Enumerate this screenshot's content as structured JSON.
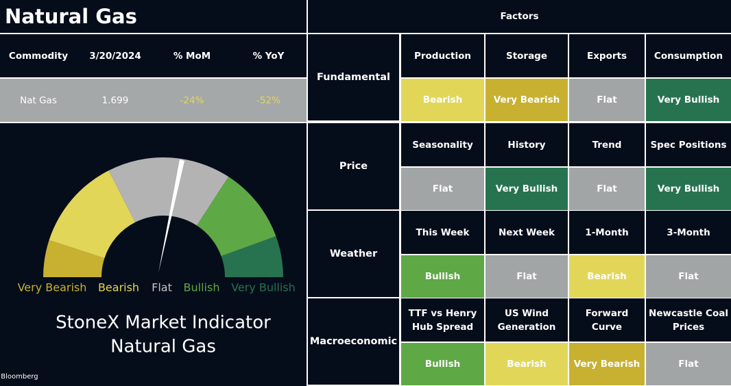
{
  "title": "Natural Gas",
  "source": "Source: Bloomberg",
  "commodity_table": {
    "headers": [
      "Commodity",
      "3/20/2024",
      "% MoM",
      "% YoY"
    ],
    "rows": [
      [
        "Nat Gas",
        "1.699",
        "-24%",
        "-52%"
      ]
    ],
    "row_colors": [
      [
        "#ffffff",
        "#ffffff",
        "#e2d659",
        "#e2d659"
      ]
    ]
  },
  "gauge": {
    "segments": [
      {
        "label": "Very Bearish",
        "color": "#c8b131",
        "text_color": "#c8b131"
      },
      {
        "label": "Bearish",
        "color": "#e2d659",
        "text_color": "#e2d659"
      },
      {
        "label": "Flat",
        "color": "#b3b3b3",
        "text_color": "#c4c4c4"
      },
      {
        "label": "Bullish",
        "color": "#5ea846",
        "text_color": "#5ea846"
      },
      {
        "label": "Very Bullish",
        "color": "#277350",
        "text_color": "#277350"
      }
    ],
    "title_lines": [
      "StoneX Market Indicator",
      "Natural Gas"
    ]
  },
  "factors": {
    "title": "Factors",
    "groups": [
      {
        "name": "Fundamental",
        "items": [
          {
            "label": [
              "Production"
            ],
            "rating": "Bearish",
            "color": "#e2d659"
          },
          {
            "label": [
              "Storage"
            ],
            "rating": "Very Bearish",
            "color": "#c8b131"
          },
          {
            "label": [
              "Exports"
            ],
            "rating": "Flat",
            "color": "#a1a5a5"
          },
          {
            "label": [
              "Consumption"
            ],
            "rating": "Very Bullish",
            "color": "#277350"
          }
        ]
      },
      {
        "name": "Price",
        "items": [
          {
            "label": [
              "Seasonality"
            ],
            "rating": "Flat",
            "color": "#a1a5a5"
          },
          {
            "label": [
              "History"
            ],
            "rating": "Very Bullish",
            "color": "#277350"
          },
          {
            "label": [
              "Trend"
            ],
            "rating": "Flat",
            "color": "#a1a5a5"
          },
          {
            "label": [
              "Spec Positions"
            ],
            "rating": "Very Bullish",
            "color": "#277350"
          }
        ]
      },
      {
        "name": "Weather",
        "items": [
          {
            "label": [
              "This Week"
            ],
            "rating": "Bullish",
            "color": "#5ea846"
          },
          {
            "label": [
              "Next Week"
            ],
            "rating": "Flat",
            "color": "#a1a5a5"
          },
          {
            "label": [
              "1-Month"
            ],
            "rating": "Bearish",
            "color": "#e2d659"
          },
          {
            "label": [
              "3-Month"
            ],
            "rating": "Flat",
            "color": "#a1a5a5"
          }
        ]
      },
      {
        "name": "Macroeconomic",
        "items": [
          {
            "label": [
              "TTF vs Henry",
              "Hub Spread"
            ],
            "rating": "Bullish",
            "color": "#5ea846"
          },
          {
            "label": [
              "US Wind",
              "Generation"
            ],
            "rating": "Bearish",
            "color": "#e2d659"
          },
          {
            "label": [
              "Forward",
              "Curve"
            ],
            "rating": "Very Bearish",
            "color": "#c8b131"
          },
          {
            "label": [
              "Newcastle Coal",
              "Prices"
            ],
            "rating": "Flat",
            "color": "#a1a5a5"
          }
        ]
      }
    ]
  }
}
